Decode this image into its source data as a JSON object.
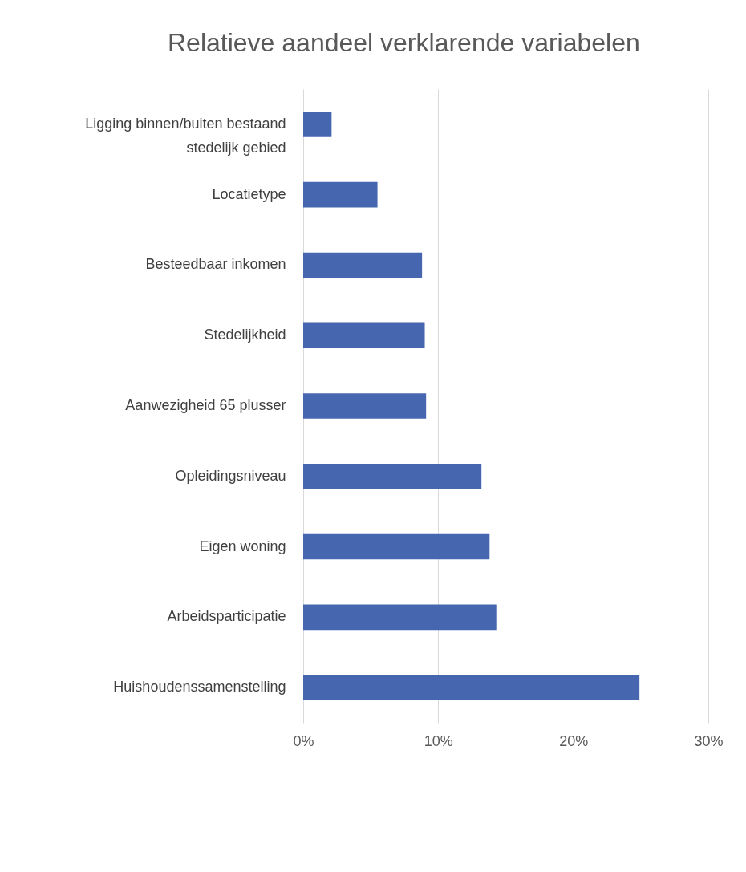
{
  "chart_data": {
    "type": "bar",
    "orientation": "horizontal",
    "title": "Relatieve aandeel verklarende variabelen",
    "categories": [
      "Ligging binnen/buiten bestaand stedelijk gebied",
      "Locatietype",
      "Besteedbaar inkomen",
      "Stedelijkheid",
      "Aanwezigheid 65 plusser",
      "Opleidingsniveau",
      "Eigen woning",
      "Arbeidsparticipatie",
      "Huishoudenssamenstelling"
    ],
    "values": [
      2.1,
      5.5,
      8.8,
      9.0,
      9.1,
      13.2,
      13.8,
      14.3,
      24.9
    ],
    "color": "#4766b0",
    "xlim": [
      0,
      30
    ],
    "xticks": [
      {
        "value": 0,
        "label": "0%"
      },
      {
        "value": 10,
        "label": "10%"
      },
      {
        "value": 20,
        "label": "20%"
      },
      {
        "value": 30,
        "label": "30%"
      }
    ],
    "grid": "x"
  }
}
